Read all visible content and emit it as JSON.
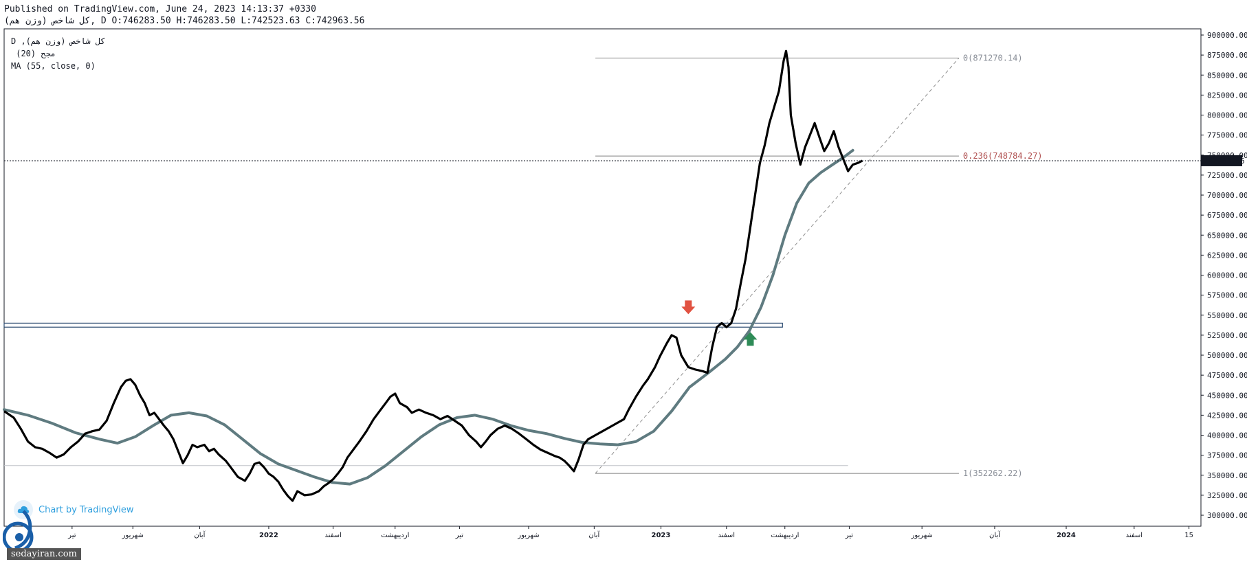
{
  "header": {
    "published": "Published on TradingView.com, June 24, 2023 14:13:37 +0330",
    "ohlc": "(وزن هم) کل شاخص, D O:746283.50 H:746283.50 L:742523.63 C:742963.56"
  },
  "legend": {
    "line1": "D ,(وزن هم) کل شاخص",
    "line2": " (20) مجح",
    "line3": "MA (55, close, 0)"
  },
  "watermark": {
    "text": "Chart by TradingView",
    "icon": "tradingview-cloud-icon"
  },
  "site": {
    "text": "sedayiran.com",
    "logo": "sedayiran-logo-icon"
  },
  "colors": {
    "price": "#000000",
    "ma": "#5f7b80",
    "grid_line": "#9aa0a6",
    "price_label_bg": "#131722",
    "fib_mid": "#b05050",
    "fib_other": "#8a8f98",
    "zone": "#2b4a70",
    "arrow_down": "#e15241",
    "arrow_up": "#2e8b57"
  },
  "chart_data": {
    "type": "line",
    "y_axis": {
      "range": [
        290000,
        905000
      ],
      "ticks": [
        900000,
        875000,
        850000,
        825000,
        800000,
        775000,
        750000,
        725000,
        700000,
        675000,
        650000,
        625000,
        600000,
        575000,
        550000,
        525000,
        500000,
        475000,
        450000,
        425000,
        400000,
        375000,
        350000,
        325000,
        300000
      ],
      "tick_labels": [
        "900000.00",
        "875000.00",
        "850000.00",
        "825000.00",
        "800000.00",
        "775000.00",
        "750000.00",
        "725000.00",
        "700000.00",
        "675000.00",
        "650000.00",
        "625000.00",
        "600000.00",
        "575000.00",
        "550000.00",
        "525000.00",
        "500000.00",
        "475000.00",
        "450000.00",
        "425000.00",
        "400000.00",
        "375000.00",
        "350000.00",
        "325000.00",
        "300000.00"
      ]
    },
    "x_axis": {
      "range": [
        0,
        1000
      ],
      "ticks": [
        {
          "t": 57,
          "label": "تیر"
        },
        {
          "t": 108,
          "label": "شهریور"
        },
        {
          "t": 164,
          "label": "آبان"
        },
        {
          "t": 222,
          "label": "2022",
          "bold": true
        },
        {
          "t": 276,
          "label": "اسفند"
        },
        {
          "t": 328,
          "label": "اردیبهشت"
        },
        {
          "t": 382,
          "label": "تیر"
        },
        {
          "t": 440,
          "label": "شهریور"
        },
        {
          "t": 495,
          "label": "آبان"
        },
        {
          "t": 551,
          "label": "2023",
          "bold": true
        },
        {
          "t": 606,
          "label": "اسفند"
        },
        {
          "t": 655,
          "label": "اردیبهشت"
        },
        {
          "t": 709,
          "label": "تیر"
        },
        {
          "t": 770,
          "label": "شهریور"
        },
        {
          "t": 831,
          "label": "آبان"
        },
        {
          "t": 891,
          "label": "2024",
          "bold": true
        },
        {
          "t": 948,
          "label": "اسفند"
        },
        {
          "t": 994,
          "label": "15"
        }
      ]
    },
    "last_price": {
      "value": 742963.56,
      "label": "742963.56"
    },
    "series": [
      {
        "name": "(وزن هم) کل شاخص",
        "points": [
          [
            0,
            430000
          ],
          [
            8,
            422000
          ],
          [
            14,
            408000
          ],
          [
            20,
            392000
          ],
          [
            26,
            385000
          ],
          [
            32,
            383000
          ],
          [
            38,
            378000
          ],
          [
            44,
            372000
          ],
          [
            50,
            376000
          ],
          [
            56,
            385000
          ],
          [
            62,
            392000
          ],
          [
            68,
            402000
          ],
          [
            74,
            405000
          ],
          [
            80,
            407000
          ],
          [
            86,
            418000
          ],
          [
            92,
            440000
          ],
          [
            98,
            460000
          ],
          [
            102,
            468000
          ],
          [
            106,
            470000
          ],
          [
            110,
            463000
          ],
          [
            114,
            450000
          ],
          [
            118,
            440000
          ],
          [
            122,
            425000
          ],
          [
            126,
            428000
          ],
          [
            130,
            420000
          ],
          [
            134,
            412000
          ],
          [
            138,
            405000
          ],
          [
            142,
            395000
          ],
          [
            146,
            380000
          ],
          [
            150,
            365000
          ],
          [
            154,
            375000
          ],
          [
            158,
            388000
          ],
          [
            162,
            385000
          ],
          [
            168,
            388000
          ],
          [
            172,
            380000
          ],
          [
            176,
            383000
          ],
          [
            180,
            376000
          ],
          [
            186,
            368000
          ],
          [
            190,
            360000
          ],
          [
            196,
            348000
          ],
          [
            202,
            343000
          ],
          [
            206,
            352000
          ],
          [
            210,
            364000
          ],
          [
            214,
            366000
          ],
          [
            218,
            360000
          ],
          [
            222,
            352000
          ],
          [
            226,
            348000
          ],
          [
            230,
            342000
          ],
          [
            234,
            332000
          ],
          [
            238,
            324000
          ],
          [
            242,
            318000
          ],
          [
            246,
            330000
          ],
          [
            252,
            325000
          ],
          [
            258,
            326000
          ],
          [
            264,
            330000
          ],
          [
            268,
            336000
          ],
          [
            272,
            340000
          ],
          [
            276,
            345000
          ],
          [
            280,
            352000
          ],
          [
            284,
            360000
          ],
          [
            288,
            372000
          ],
          [
            292,
            380000
          ],
          [
            298,
            392000
          ],
          [
            304,
            405000
          ],
          [
            310,
            420000
          ],
          [
            316,
            432000
          ],
          [
            320,
            440000
          ],
          [
            324,
            448000
          ],
          [
            328,
            452000
          ],
          [
            332,
            440000
          ],
          [
            338,
            435000
          ],
          [
            342,
            428000
          ],
          [
            348,
            432000
          ],
          [
            354,
            428000
          ],
          [
            360,
            425000
          ],
          [
            366,
            420000
          ],
          [
            372,
            424000
          ],
          [
            378,
            418000
          ],
          [
            384,
            412000
          ],
          [
            390,
            400000
          ],
          [
            396,
            392000
          ],
          [
            400,
            385000
          ],
          [
            404,
            392000
          ],
          [
            408,
            400000
          ],
          [
            414,
            408000
          ],
          [
            420,
            412000
          ],
          [
            426,
            408000
          ],
          [
            432,
            402000
          ],
          [
            438,
            395000
          ],
          [
            444,
            388000
          ],
          [
            450,
            382000
          ],
          [
            456,
            378000
          ],
          [
            462,
            374000
          ],
          [
            466,
            372000
          ],
          [
            470,
            368000
          ],
          [
            474,
            362000
          ],
          [
            478,
            355000
          ],
          [
            482,
            370000
          ],
          [
            486,
            388000
          ],
          [
            490,
            395000
          ],
          [
            496,
            400000
          ],
          [
            502,
            405000
          ],
          [
            508,
            410000
          ],
          [
            514,
            415000
          ],
          [
            520,
            420000
          ],
          [
            524,
            432000
          ],
          [
            530,
            448000
          ],
          [
            536,
            462000
          ],
          [
            540,
            470000
          ],
          [
            546,
            485000
          ],
          [
            550,
            498000
          ],
          [
            556,
            515000
          ],
          [
            560,
            525000
          ],
          [
            564,
            522000
          ],
          [
            568,
            500000
          ],
          [
            574,
            485000
          ],
          [
            580,
            482000
          ],
          [
            586,
            480000
          ],
          [
            590,
            478000
          ],
          [
            594,
            510000
          ],
          [
            598,
            535000
          ],
          [
            602,
            540000
          ],
          [
            606,
            535000
          ],
          [
            610,
            540000
          ],
          [
            614,
            558000
          ],
          [
            618,
            590000
          ],
          [
            622,
            620000
          ],
          [
            626,
            660000
          ],
          [
            630,
            700000
          ],
          [
            634,
            740000
          ],
          [
            638,
            762000
          ],
          [
            642,
            790000
          ],
          [
            646,
            810000
          ],
          [
            650,
            830000
          ],
          [
            654,
            868000
          ],
          [
            656,
            880000
          ],
          [
            658,
            860000
          ],
          [
            660,
            800000
          ],
          [
            664,
            765000
          ],
          [
            668,
            738000
          ],
          [
            672,
            760000
          ],
          [
            676,
            775000
          ],
          [
            680,
            790000
          ],
          [
            684,
            772000
          ],
          [
            688,
            755000
          ],
          [
            692,
            765000
          ],
          [
            696,
            780000
          ],
          [
            700,
            760000
          ],
          [
            704,
            745000
          ],
          [
            708,
            730000
          ],
          [
            712,
            738000
          ],
          [
            716,
            740000
          ],
          [
            720,
            742963
          ]
        ]
      },
      {
        "name": "MA (55, close, 0)",
        "points": [
          [
            0,
            432000
          ],
          [
            20,
            425000
          ],
          [
            40,
            415000
          ],
          [
            60,
            403000
          ],
          [
            80,
            395000
          ],
          [
            95,
            390000
          ],
          [
            110,
            398000
          ],
          [
            125,
            412000
          ],
          [
            140,
            425000
          ],
          [
            155,
            428000
          ],
          [
            170,
            424000
          ],
          [
            185,
            413000
          ],
          [
            200,
            395000
          ],
          [
            215,
            377000
          ],
          [
            230,
            364000
          ],
          [
            245,
            356000
          ],
          [
            260,
            348000
          ],
          [
            275,
            341000
          ],
          [
            290,
            339000
          ],
          [
            305,
            347000
          ],
          [
            320,
            362000
          ],
          [
            335,
            380000
          ],
          [
            350,
            398000
          ],
          [
            365,
            413000
          ],
          [
            380,
            422000
          ],
          [
            395,
            425000
          ],
          [
            410,
            420000
          ],
          [
            425,
            412000
          ],
          [
            440,
            406000
          ],
          [
            455,
            402000
          ],
          [
            470,
            396000
          ],
          [
            485,
            391000
          ],
          [
            500,
            389000
          ],
          [
            515,
            388000
          ],
          [
            530,
            392000
          ],
          [
            545,
            405000
          ],
          [
            560,
            430000
          ],
          [
            575,
            460000
          ],
          [
            590,
            477000
          ],
          [
            605,
            495000
          ],
          [
            615,
            510000
          ],
          [
            625,
            530000
          ],
          [
            635,
            560000
          ],
          [
            645,
            600000
          ],
          [
            655,
            650000
          ],
          [
            665,
            690000
          ],
          [
            675,
            715000
          ],
          [
            685,
            728000
          ],
          [
            695,
            738000
          ],
          [
            705,
            748000
          ],
          [
            712,
            756000
          ]
        ]
      }
    ],
    "fibonacci": {
      "x_start": 496,
      "x_end": 801,
      "levels": [
        {
          "label": "0(871270.14)",
          "value": 871270.14
        },
        {
          "label": "0.236(748784.27)",
          "value": 748784.27
        },
        {
          "label": "1(352262.22)",
          "value": 352262.22
        }
      ],
      "trend_line": [
        [
          496,
          352262
        ],
        [
          801,
          871270
        ]
      ]
    },
    "zone": {
      "x_start": 0,
      "x_end": 653,
      "top": 540000,
      "bottom": 535000
    },
    "support_line": {
      "x_start": 0,
      "x_end": 708,
      "value": 362000
    },
    "markers": [
      {
        "type": "arrow-down",
        "t": 574,
        "value": 558000
      },
      {
        "type": "arrow-up",
        "t": 626,
        "value": 522000
      }
    ]
  }
}
